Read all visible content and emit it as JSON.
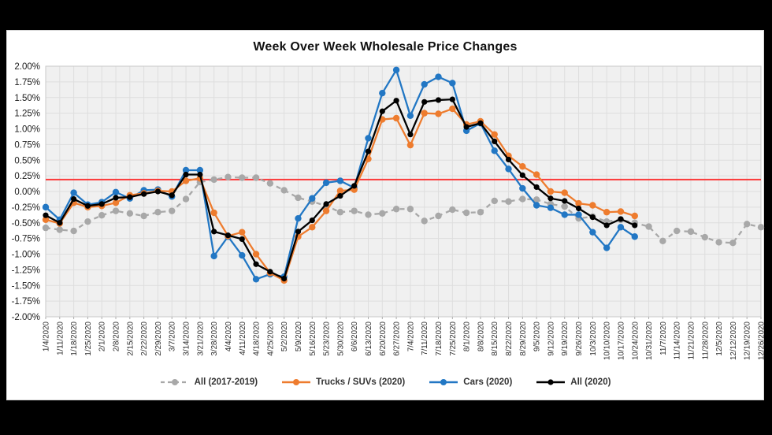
{
  "page": {
    "background_color": "#000000",
    "panel_background": "#ffffff",
    "plot_background": "#f0f0f0",
    "gridline_color": "#dedede"
  },
  "chart_data": {
    "type": "line",
    "title": "Week Over Week Wholesale Price Changes",
    "xlabel": "",
    "ylabel": "",
    "y_ticks": [
      "2.00%",
      "1.75%",
      "1.50%",
      "1.25%",
      "1.00%",
      "0.75%",
      "0.50%",
      "0.25%",
      "0.00%",
      "-0.25%",
      "-0.50%",
      "-0.75%",
      "-1.00%",
      "-1.25%",
      "-1.50%",
      "-1.75%",
      "-2.00%"
    ],
    "y_range": [
      -2.0,
      2.0
    ],
    "grid": true,
    "legend_position": "bottom",
    "reference_line": {
      "value": 0.19,
      "color": "#fb3a3a"
    },
    "x_labels": [
      "1/4/2020",
      "1/11/2020",
      "1/18/2020",
      "1/25/2020",
      "2/1/2020",
      "2/8/2020",
      "2/15/2020",
      "2/22/2020",
      "2/29/2020",
      "3/7/2020",
      "3/14/2020",
      "3/21/2020",
      "3/28/2020",
      "4/4/2020",
      "4/11/2020",
      "4/18/2020",
      "4/25/2020",
      "5/2/2020",
      "5/9/2020",
      "5/16/2020",
      "5/23/2020",
      "5/30/2020",
      "6/6/2020",
      "6/13/2020",
      "6/20/2020",
      "6/27/2020",
      "7/4/2020",
      "7/11/2020",
      "7/18/2020",
      "7/25/2020",
      "8/1/2020",
      "8/8/2020",
      "8/15/2020",
      "8/22/2020",
      "8/29/2020",
      "9/5/2020",
      "9/12/2020",
      "9/19/2020",
      "9/26/2020",
      "10/3/2020",
      "10/10/2020",
      "10/17/2020",
      "10/24/2020",
      "10/31/2020",
      "11/7/2020",
      "11/14/2020",
      "11/21/2020",
      "11/28/2020",
      "12/5/2020",
      "12/12/2020",
      "12/19/2020",
      "12/26/2020"
    ],
    "series": [
      {
        "name": "All (2017-2019)",
        "color": "#a8a8a8",
        "style": "dashed",
        "marker": "circle",
        "values": [
          -0.58,
          -0.61,
          -0.63,
          -0.48,
          -0.38,
          -0.31,
          -0.35,
          -0.39,
          -0.33,
          -0.31,
          -0.12,
          0.15,
          0.19,
          0.23,
          0.22,
          0.22,
          0.13,
          0.02,
          -0.1,
          -0.16,
          -0.23,
          -0.33,
          -0.31,
          -0.37,
          -0.35,
          -0.28,
          -0.28,
          -0.47,
          -0.39,
          -0.29,
          -0.34,
          -0.33,
          -0.15,
          -0.16,
          -0.12,
          -0.13,
          -0.2,
          -0.24,
          -0.43,
          -0.4,
          -0.48,
          -0.45,
          -0.5,
          -0.56,
          -0.79,
          -0.63,
          -0.64,
          -0.73,
          -0.81,
          -0.82,
          -0.52,
          -0.57
        ]
      },
      {
        "name": "Trucks / SUVs (2020)",
        "color": "#ee7c2e",
        "style": "solid",
        "marker": "circle",
        "values": [
          -0.45,
          -0.51,
          -0.18,
          -0.25,
          -0.23,
          -0.18,
          -0.06,
          -0.03,
          0.01,
          0.0,
          0.17,
          0.21,
          -0.34,
          -0.71,
          -0.65,
          -1.0,
          -1.3,
          -1.42,
          -0.72,
          -0.57,
          -0.31,
          0.01,
          0.03,
          0.52,
          1.15,
          1.17,
          0.74,
          1.25,
          1.24,
          1.32,
          1.07,
          1.12,
          0.91,
          0.57,
          0.4,
          0.27,
          0.0,
          -0.02,
          -0.19,
          -0.22,
          -0.33,
          -0.32,
          -0.39
        ]
      },
      {
        "name": "Cars (2020)",
        "color": "#2277c4",
        "style": "solid",
        "marker": "circle",
        "values": [
          -0.25,
          -0.45,
          -0.02,
          -0.21,
          -0.17,
          -0.01,
          -0.11,
          0.02,
          0.03,
          -0.08,
          0.34,
          0.34,
          -1.03,
          -0.72,
          -1.02,
          -1.4,
          -1.32,
          -1.36,
          -0.43,
          -0.11,
          0.14,
          0.17,
          0.06,
          0.85,
          1.57,
          1.94,
          1.21,
          1.71,
          1.83,
          1.73,
          0.97,
          1.09,
          0.65,
          0.36,
          0.05,
          -0.22,
          -0.26,
          -0.37,
          -0.37,
          -0.65,
          -0.9,
          -0.57,
          -0.72
        ]
      },
      {
        "name": "All (2020)",
        "color": "#000000",
        "style": "solid",
        "marker": "circle",
        "values": [
          -0.38,
          -0.5,
          -0.12,
          -0.23,
          -0.2,
          -0.1,
          -0.09,
          -0.04,
          0.0,
          -0.06,
          0.27,
          0.27,
          -0.64,
          -0.7,
          -0.76,
          -1.16,
          -1.28,
          -1.39,
          -0.64,
          -0.46,
          -0.2,
          -0.07,
          0.09,
          0.64,
          1.28,
          1.45,
          0.91,
          1.43,
          1.46,
          1.47,
          1.03,
          1.09,
          0.8,
          0.51,
          0.26,
          0.07,
          -0.11,
          -0.15,
          -0.27,
          -0.41,
          -0.54,
          -0.44,
          -0.54
        ]
      }
    ]
  }
}
